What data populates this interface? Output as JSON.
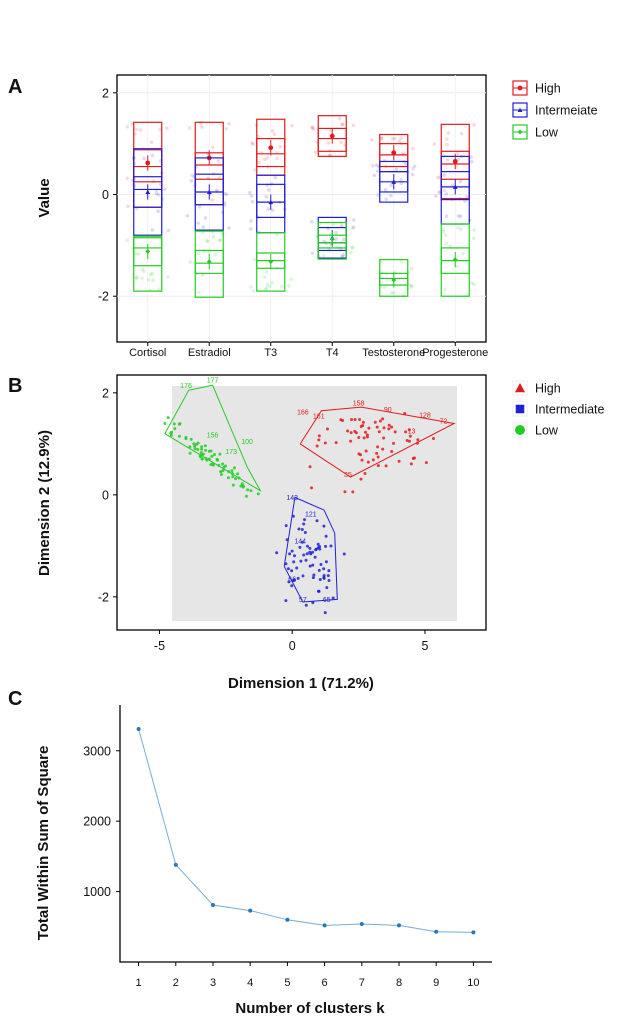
{
  "panels": {
    "a": "A",
    "b": "B",
    "c": "C"
  },
  "chart_data": [
    {
      "type": "box",
      "ylabel": "Value",
      "ylim": [
        -2.9,
        2.35
      ],
      "yticks": [
        -2,
        0,
        2
      ],
      "categories": [
        "Cortisol",
        "Estradiol",
        "T3",
        "T4",
        "Testosterone",
        "Progesterone"
      ],
      "legend": {
        "placement": "right"
      },
      "series": [
        {
          "name": "High",
          "color": "#e31a1c",
          "marker": "circle",
          "boxes": [
            [
              0.25,
              0.55,
              0.88,
              0.62
            ],
            [
              0.3,
              0.58,
              0.82,
              0.72
            ],
            [
              0.55,
              0.8,
              1.1,
              0.92
            ],
            [
              0.85,
              1.1,
              1.3,
              1.15
            ],
            [
              0.55,
              0.78,
              1.0,
              0.82
            ],
            [
              0.3,
              0.6,
              0.85,
              0.65
            ]
          ],
          "whiskers": [
            [
              -0.25,
              1.42
            ],
            [
              -0.2,
              1.42
            ],
            [
              0.38,
              1.48
            ],
            [
              0.75,
              1.55
            ],
            [
              0.45,
              1.18
            ],
            [
              -0.08,
              1.38
            ]
          ]
        },
        {
          "name": "Intermeiate",
          "color": "#1f1fd6",
          "marker": "triangle",
          "boxes": [
            [
              -0.25,
              0.1,
              0.35,
              0.05
            ],
            [
              -0.2,
              0.05,
              0.4,
              0.05
            ],
            [
              -0.45,
              -0.15,
              0.2,
              -0.15
            ],
            [
              -1.1,
              -0.95,
              -0.65,
              -0.85
            ],
            [
              0.05,
              0.25,
              0.45,
              0.25
            ],
            [
              -0.1,
              0.15,
              0.45,
              0.15
            ]
          ],
          "whiskers": [
            [
              -0.8,
              0.9
            ],
            [
              -0.7,
              0.72
            ],
            [
              -0.75,
              0.38
            ],
            [
              -1.25,
              -0.45
            ],
            [
              -0.15,
              0.65
            ],
            [
              -0.58,
              0.75
            ]
          ]
        },
        {
          "name": "Low",
          "color": "#22cc22",
          "marker": "diamond",
          "boxes": [
            [
              -1.4,
              -1.05,
              -0.85,
              -1.12
            ],
            [
              -1.55,
              -1.35,
              -1.1,
              -1.32
            ],
            [
              -1.45,
              -1.3,
              -1.15,
              -1.32
            ],
            [
              -1.05,
              -0.95,
              -0.8,
              -0.88
            ],
            [
              -1.78,
              -1.65,
              -1.55,
              -1.68
            ],
            [
              -1.55,
              -1.3,
              -1.05,
              -1.28
            ]
          ],
          "whiskers": [
            [
              -1.9,
              -0.82
            ],
            [
              -2.02,
              -0.72
            ],
            [
              -1.9,
              -0.75
            ],
            [
              -1.27,
              -0.55
            ],
            [
              -2.0,
              -1.28
            ],
            [
              -2.0,
              -0.58
            ]
          ]
        }
      ]
    },
    {
      "type": "scatter",
      "xlabel": "Dimension 1 (71.2%)",
      "ylabel": "Dimension 2 (12.9%)",
      "xlim": [
        -6.6,
        7.3
      ],
      "ylim": [
        -2.65,
        2.35
      ],
      "xticks": [
        -5,
        0,
        5
      ],
      "yticks": [
        -2,
        0,
        2
      ],
      "legend": {
        "placement": "right"
      },
      "series": [
        {
          "name": "High",
          "color": "#e31a1c",
          "marker": "triangle",
          "hull": [
            [
              0.3,
              1.0
            ],
            [
              1.1,
              1.65
            ],
            [
              2.6,
              1.72
            ],
            [
              6.1,
              1.4
            ],
            [
              2.2,
              0.35
            ],
            [
              0.3,
              1.0
            ]
          ],
          "center": [
            3.0,
            1.05
          ],
          "spread": [
            1.2,
            0.32
          ],
          "tilt": 0.0,
          "labels": [
            [
              "158",
              2.5,
              1.75
            ],
            [
              "166",
              0.4,
              1.58
            ],
            [
              "161",
              1.0,
              1.5
            ],
            [
              "90",
              3.6,
              1.62
            ],
            [
              "128",
              5.0,
              1.52
            ],
            [
              "72",
              5.7,
              1.4
            ],
            [
              "13",
              4.5,
              1.2
            ],
            [
              "35",
              2.1,
              0.35
            ]
          ]
        },
        {
          "name": "Intermediate",
          "color": "#1f1fd6",
          "marker": "square",
          "hull": [
            [
              -0.3,
              -1.4
            ],
            [
              0.1,
              -0.05
            ],
            [
              1.2,
              -0.3
            ],
            [
              1.6,
              -0.75
            ],
            [
              1.7,
              -2.05
            ],
            [
              0.4,
              -2.1
            ],
            [
              -0.3,
              -1.4
            ]
          ],
          "center": [
            0.6,
            -1.35
          ],
          "spread": [
            0.5,
            0.45
          ],
          "tilt": 0.0,
          "labels": [
            [
              "143",
              0.0,
              -0.1
            ],
            [
              "121",
              0.7,
              -0.42
            ],
            [
              "144",
              0.3,
              -0.95
            ],
            [
              "66",
              0.0,
              -1.7
            ],
            [
              "57",
              0.4,
              -2.1
            ],
            [
              "65",
              1.3,
              -2.1
            ]
          ]
        },
        {
          "name": "Low",
          "color": "#22cc22",
          "marker": "circle",
          "hull": [
            [
              -4.8,
              1.2
            ],
            [
              -3.9,
              2.05
            ],
            [
              -3.0,
              2.15
            ],
            [
              -1.7,
              0.55
            ],
            [
              -1.2,
              0.08
            ],
            [
              -4.8,
              1.2
            ]
          ],
          "center": [
            -3.2,
            0.75
          ],
          "spread": [
            0.9,
            0.1
          ],
          "tilt": -0.4,
          "labels": [
            [
              "176",
              -4.0,
              2.1
            ],
            [
              "177",
              -3.0,
              2.2
            ],
            [
              "156",
              -3.0,
              1.12
            ],
            [
              "173",
              -2.3,
              0.8
            ],
            [
              "100",
              -1.7,
              1.0
            ]
          ]
        }
      ]
    },
    {
      "type": "line",
      "xlabel": "Number of clusters k",
      "ylabel": "Total Within Sum of Square",
      "xlim": [
        0.5,
        10.5
      ],
      "ylim": [
        0,
        3650
      ],
      "xticks": [
        1,
        2,
        3,
        4,
        5,
        6,
        7,
        8,
        9,
        10
      ],
      "yticks": [
        1000,
        2000,
        3000
      ],
      "color": "#4a90c9",
      "x": [
        1,
        2,
        3,
        4,
        5,
        6,
        7,
        8,
        9,
        10
      ],
      "y": [
        3310,
        1380,
        810,
        730,
        600,
        520,
        540,
        520,
        430,
        420
      ]
    }
  ]
}
